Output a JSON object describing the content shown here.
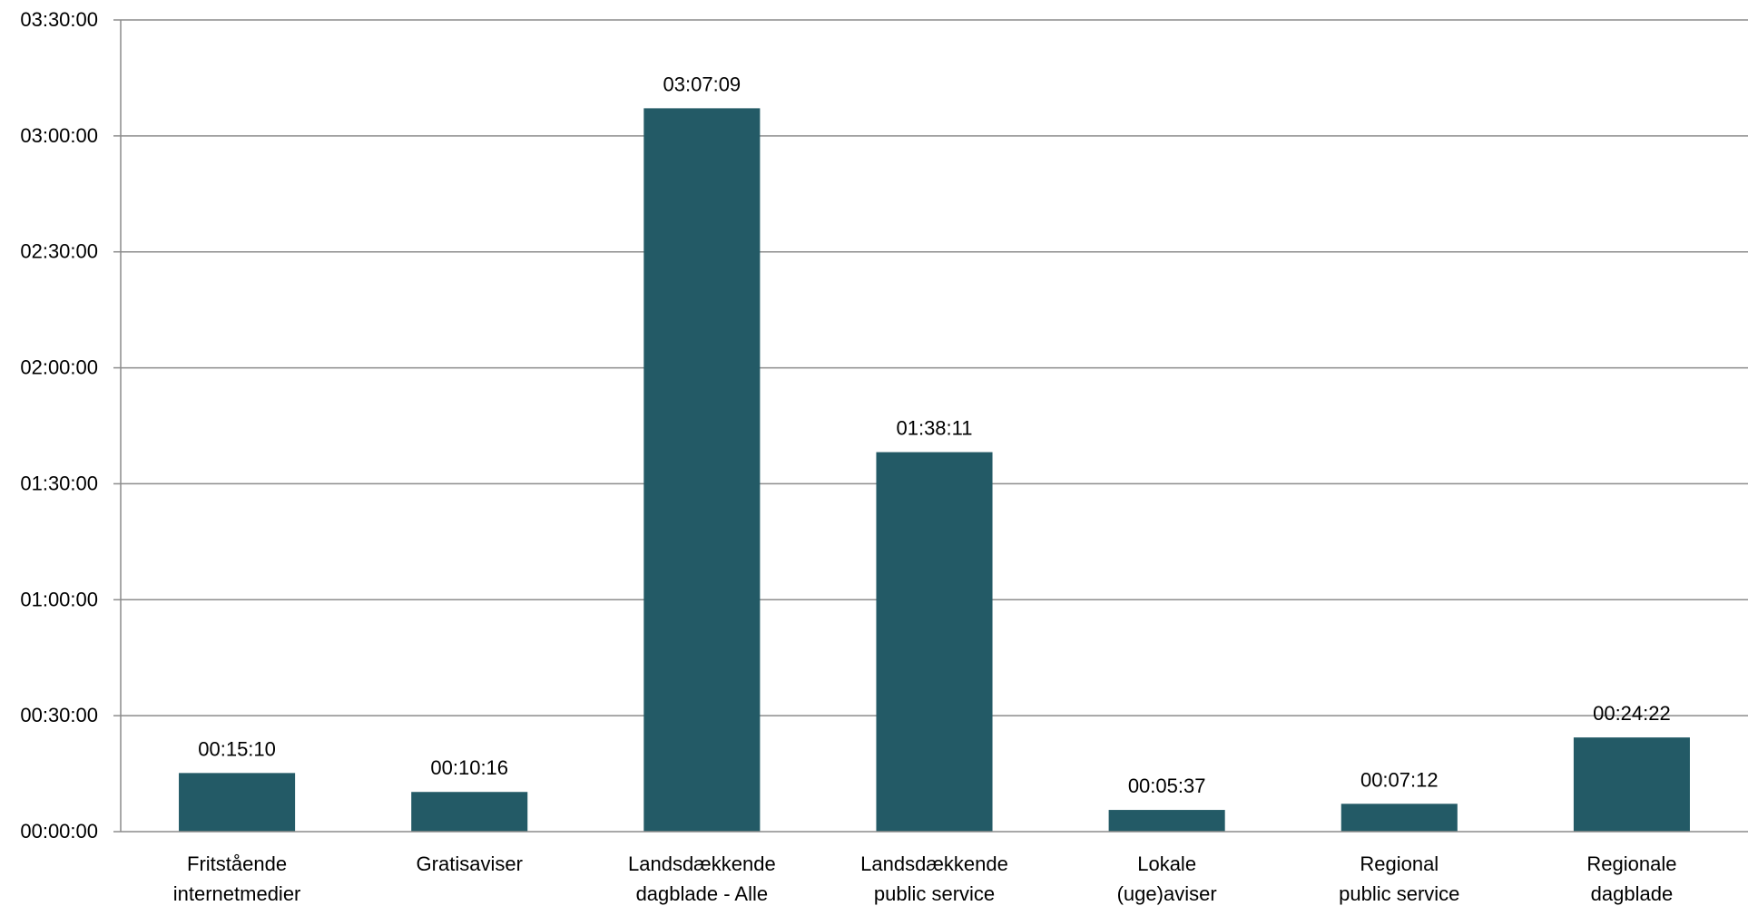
{
  "chart_data": {
    "type": "bar",
    "title": "",
    "xlabel": "",
    "ylabel": "",
    "categories": [
      [
        "Fritstående",
        "internetmedier"
      ],
      [
        "Gratisaviser"
      ],
      [
        "Landsdækkende",
        "dagblade - Alle"
      ],
      [
        "Landsdækkende",
        "public service"
      ],
      [
        "Lokale",
        "(uge)aviser"
      ],
      [
        "Regional",
        "public service"
      ],
      [
        "Regionale",
        "dagblade"
      ]
    ],
    "values_seconds": [
      910,
      616,
      11229,
      5891,
      337,
      432,
      1462
    ],
    "data_labels": [
      "00:15:10",
      "00:10:16",
      "03:07:09",
      "01:38:11",
      "00:05:37",
      "00:07:12",
      "00:24:22"
    ],
    "ylim_seconds": [
      0,
      12600
    ],
    "ytick_labels": [
      "00:00:00",
      "00:30:00",
      "01:00:00",
      "01:30:00",
      "02:00:00",
      "02:30:00",
      "03:00:00",
      "03:30:00"
    ],
    "ytick_values_seconds": [
      0,
      1800,
      3600,
      5400,
      7200,
      9000,
      10800,
      12600
    ],
    "grid": true,
    "legend": "none",
    "colors": {
      "bar": "#235a66",
      "grid": "#8c8c8c",
      "axis": "#8c8c8c"
    }
  }
}
